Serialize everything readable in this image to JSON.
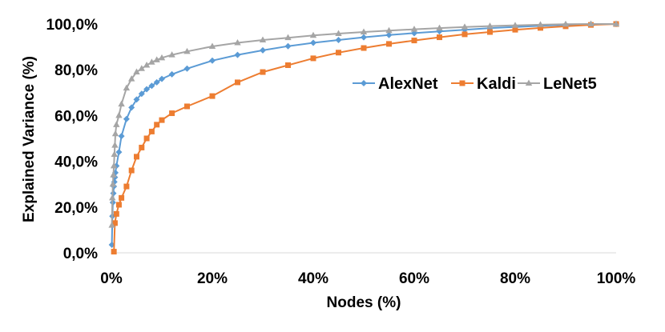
{
  "chart_data": {
    "type": "line",
    "xlabel": "Nodes (%)",
    "ylabel": "Explained Variance (%)",
    "xlim": [
      0,
      100
    ],
    "ylim": [
      0,
      100
    ],
    "xticks": [
      "0%",
      "20%",
      "40%",
      "60%",
      "80%",
      "100%"
    ],
    "yticks": [
      "0,0%",
      "20,0%",
      "40,0%",
      "60,0%",
      "80,0%",
      "100,0%"
    ],
    "grid": false,
    "legend_position": "right",
    "series": [
      {
        "name": "AlexNet",
        "color": "#5b9bd5",
        "marker": "diamond",
        "x": [
          0.1,
          0.2,
          0.3,
          0.4,
          0.5,
          0.6,
          0.7,
          0.8,
          1,
          1.5,
          2,
          3,
          4,
          5,
          6,
          7,
          8,
          9,
          10,
          12,
          15,
          20,
          25,
          30,
          35,
          40,
          45,
          50,
          55,
          60,
          65,
          70,
          75,
          80,
          85,
          90,
          95,
          100
        ],
        "y": [
          3.5,
          16,
          22,
          26,
          29,
          31,
          33,
          35,
          38,
          44,
          51,
          58.5,
          63.5,
          67,
          69.5,
          71.5,
          73,
          74.5,
          76,
          78,
          80.5,
          84,
          86.5,
          88.5,
          90.3,
          91.8,
          93,
          94.2,
          95.2,
          96,
          96.8,
          97.5,
          98.2,
          98.7,
          99.2,
          99.6,
          99.9,
          100
        ]
      },
      {
        "name": "Kaldi",
        "color": "#ed7d31",
        "marker": "square",
        "x": [
          0.5,
          0.7,
          1,
          1.5,
          2,
          3,
          4,
          5,
          6,
          7,
          8,
          9,
          10,
          12,
          15,
          20,
          25,
          30,
          35,
          40,
          45,
          50,
          55,
          60,
          65,
          70,
          75,
          80,
          85,
          90,
          95,
          100
        ],
        "y": [
          0.5,
          13,
          17,
          21,
          24,
          29,
          36,
          42,
          46,
          50,
          53,
          56,
          58,
          61,
          64,
          68.5,
          74.5,
          79,
          82,
          85,
          87.5,
          89.5,
          91.3,
          92.8,
          94.2,
          95.5,
          96.5,
          97.5,
          98.3,
          99,
          99.6,
          100
        ]
      },
      {
        "name": "LeNet5",
        "color": "#a5a5a5",
        "marker": "triangle",
        "x": [
          0.1,
          0.2,
          0.3,
          0.4,
          0.5,
          0.6,
          0.7,
          0.8,
          1,
          1.5,
          2,
          3,
          4,
          5,
          6,
          7,
          8,
          9,
          10,
          12,
          15,
          20,
          25,
          30,
          35,
          40,
          45,
          50,
          55,
          60,
          65,
          70,
          75,
          80,
          85,
          90,
          95,
          100
        ],
        "y": [
          12,
          24,
          30,
          34,
          38,
          43,
          47,
          52,
          56,
          60,
          65,
          72,
          76,
          79,
          80.5,
          82,
          83.3,
          84.3,
          85.2,
          86.5,
          88,
          90.2,
          91.8,
          93,
          94,
          95,
          95.8,
          96.5,
          97.1,
          97.7,
          98.2,
          98.7,
          99.1,
          99.4,
          99.7,
          99.9,
          100,
          100
        ]
      }
    ]
  }
}
